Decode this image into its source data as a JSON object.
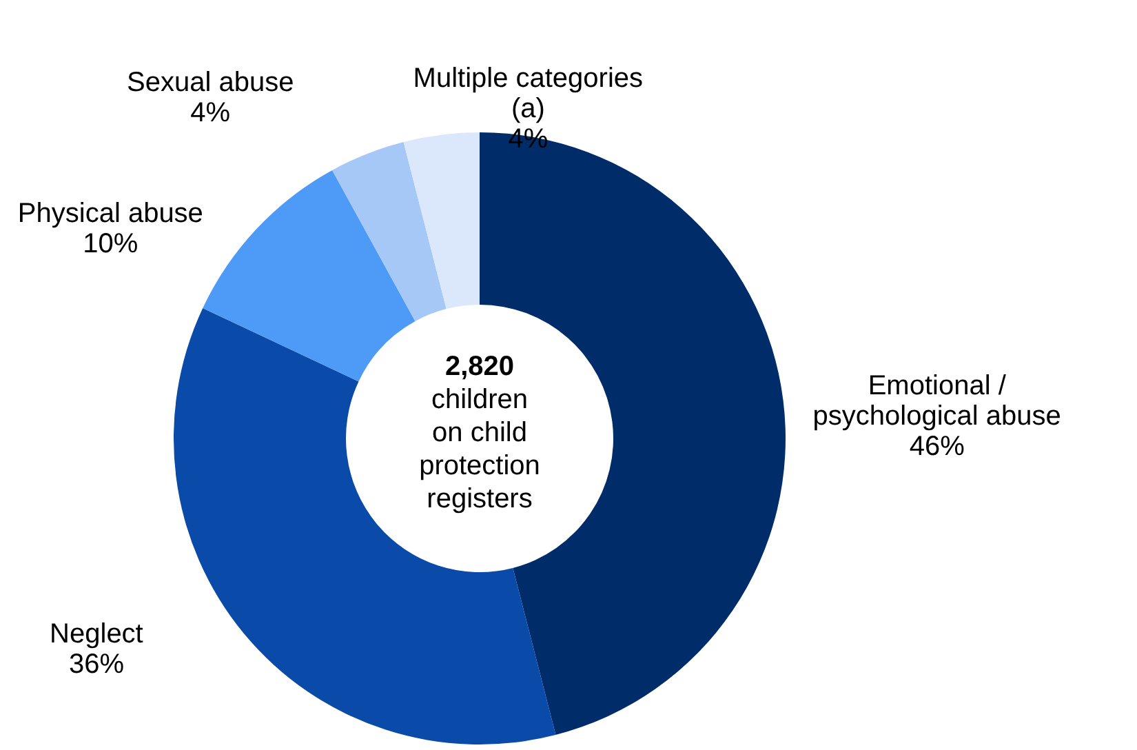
{
  "chart_data": {
    "type": "donut",
    "categories": [
      "Emotional /\npsychological abuse",
      "Neglect",
      "Physical abuse",
      "Sexual abuse",
      "Multiple categories\n(a)"
    ],
    "values": [
      46,
      36,
      10,
      4,
      4
    ],
    "value_labels": [
      "46%",
      "36%",
      "10%",
      "4%",
      "4%"
    ],
    "colors": [
      "#002d6a",
      "#0a4aa8",
      "#4d9bf7",
      "#a6c8f7",
      "#dbe8fb"
    ],
    "annotations": [
      "2,820",
      "children\non child\nprotection\nregisters"
    ]
  }
}
